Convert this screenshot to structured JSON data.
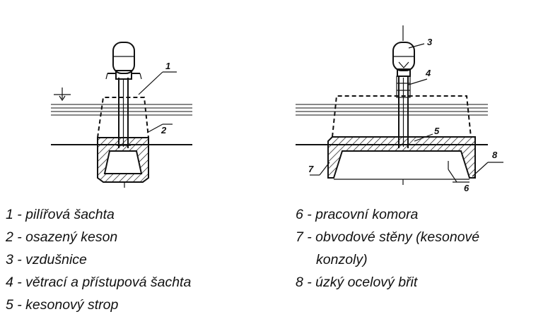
{
  "callouts": {
    "left": [
      "1",
      "2"
    ],
    "right": [
      "3",
      "4",
      "5",
      "6",
      "7",
      "8"
    ]
  },
  "legend": {
    "col1": [
      "1 - pilířová šachta",
      "2 - osazený keson",
      "3 - vzdušnice",
      "4 - větrací a přístupová šachta",
      "5 - kesonový strop"
    ],
    "col2": [
      "6 - pracovní komora",
      "7 - obvodové stěny (kesonové",
      "konzoly)",
      "8 - úzký ocelový břit"
    ]
  }
}
